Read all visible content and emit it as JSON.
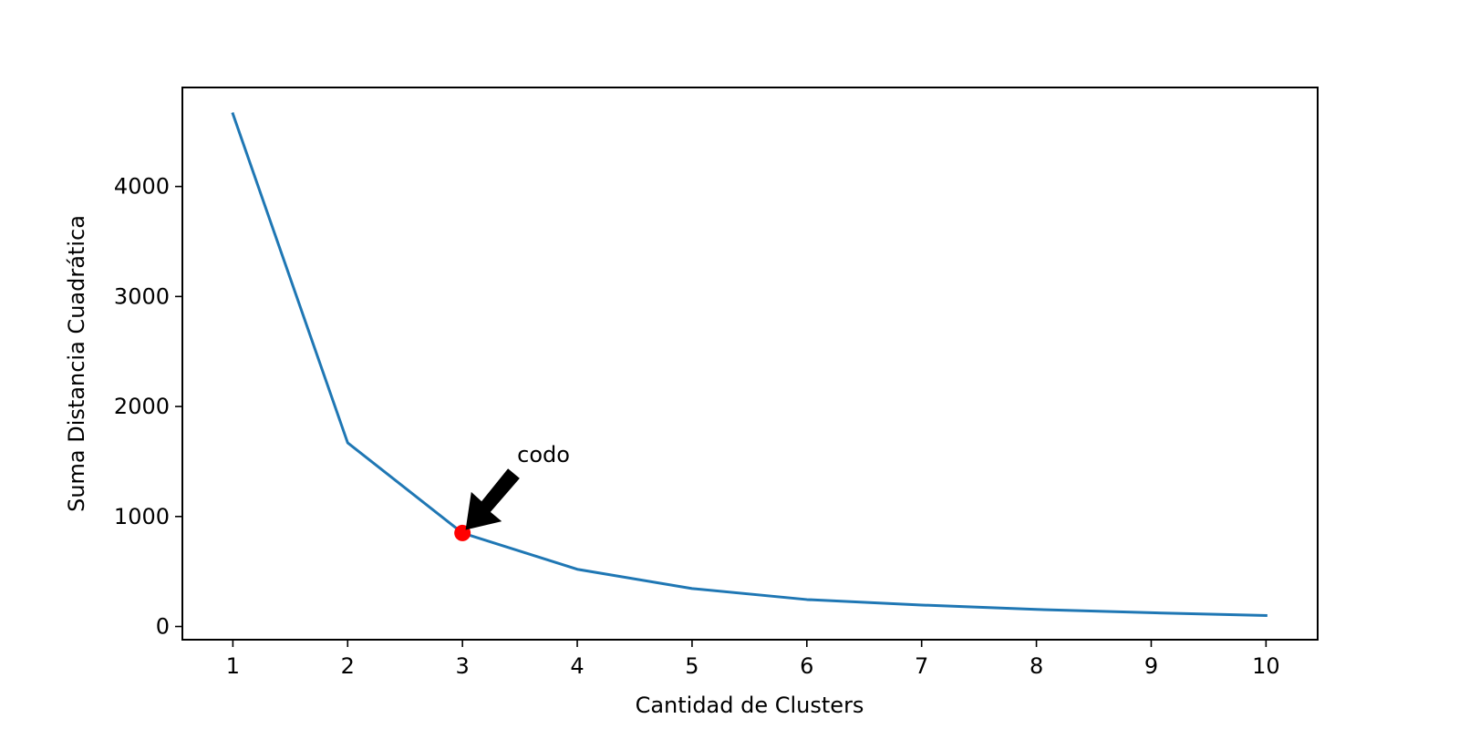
{
  "chart_data": {
    "type": "line",
    "title": "",
    "xlabel": "Cantidad de Clusters",
    "ylabel": "Suma Distancia Cuadrática",
    "x": [
      1,
      2,
      3,
      4,
      5,
      6,
      7,
      8,
      9,
      10
    ],
    "x_ticks": [
      "1",
      "2",
      "3",
      "4",
      "5",
      "6",
      "7",
      "8",
      "9",
      "10"
    ],
    "y_ticks": [
      "0",
      "1000",
      "2000",
      "3000",
      "4000"
    ],
    "xlim": [
      0.56,
      10.45
    ],
    "ylim": [
      -120,
      4900
    ],
    "grid": false,
    "series": [
      {
        "values": [
          4660,
          1670,
          850,
          520,
          345,
          245,
          195,
          155,
          125,
          100
        ],
        "color": "#1f77b4"
      }
    ],
    "highlight": {
      "x": 3,
      "y": 850,
      "color": "#ff0000"
    },
    "annotations": [
      {
        "text": "codo",
        "target_x": 3,
        "target_y": 850,
        "arrow_color": "#000000"
      }
    ]
  }
}
